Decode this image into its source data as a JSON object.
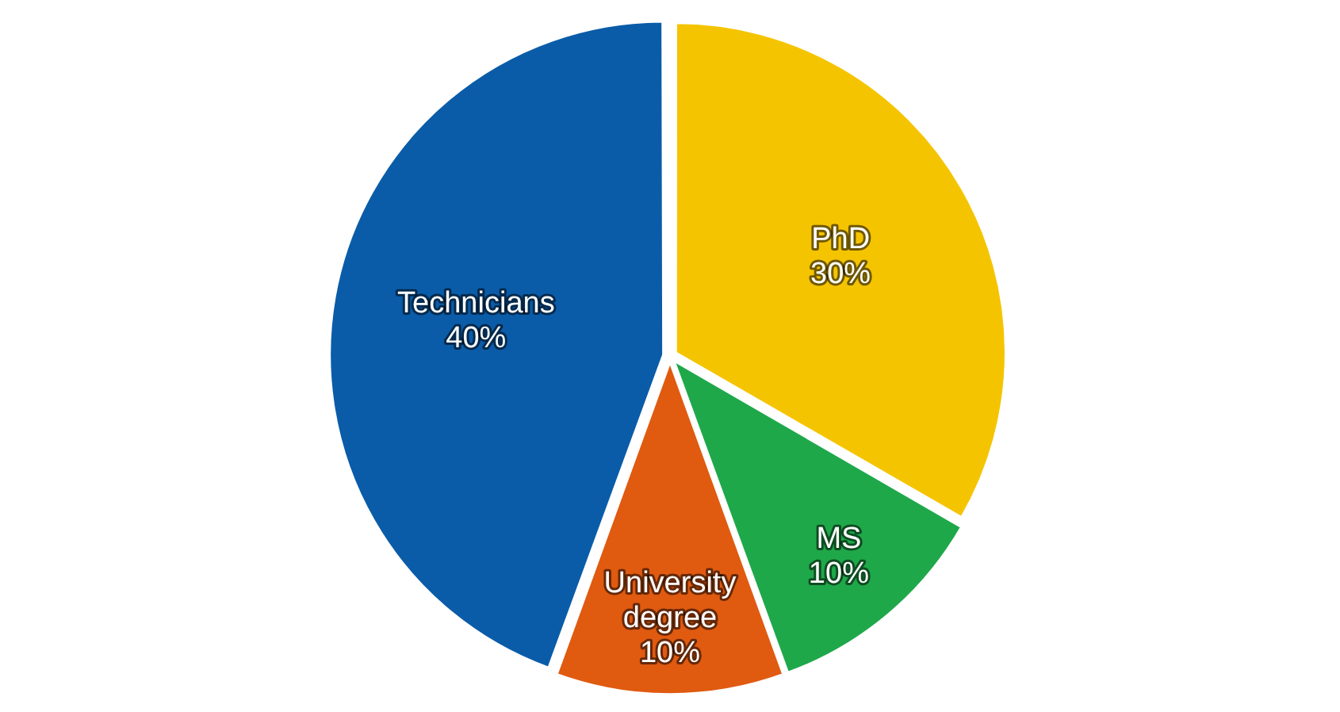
{
  "chart_data": {
    "type": "pie",
    "categories": [
      "PhD",
      "MS",
      "University degree",
      "Technicians"
    ],
    "values": [
      30,
      10,
      10,
      40
    ],
    "colors": [
      "#f5c400",
      "#1fa84a",
      "#e05a10",
      "#0a5ca8"
    ],
    "value_labels": [
      "30%",
      "10%",
      "10%",
      "40%"
    ],
    "legend": false
  }
}
